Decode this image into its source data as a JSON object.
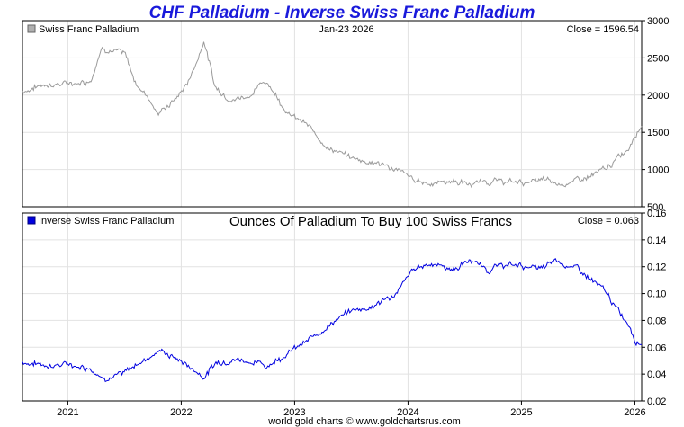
{
  "title": "CHF Palladium - Inverse Swiss Franc Palladium",
  "footer": "world gold charts © www.goldchartsrus.com",
  "colors": {
    "title": "#1a1adb",
    "top_series": "#9a9a9a",
    "bottom_series": "#0000e0"
  },
  "chart_data": [
    {
      "type": "line",
      "legend": "Swiss Franc Palladium",
      "date_label": "Jan-23  2026",
      "close_label": "Close = 1596.54",
      "ylim": [
        500,
        3000
      ],
      "yticks": [
        "500",
        "1000",
        "1500",
        "2000",
        "2500",
        "3000"
      ],
      "xlim": [
        2020.6,
        2026.06
      ],
      "grid": true,
      "series": [
        {
          "x": [
            2020.6,
            2020.8,
            2021.0,
            2021.2,
            2021.3,
            2021.42,
            2021.5,
            2021.6,
            2021.7,
            2021.8,
            2021.95,
            2022.05,
            2022.15,
            2022.2,
            2022.3,
            2022.45,
            2022.6,
            2022.75,
            2022.95,
            2023.1,
            2023.3,
            2023.5,
            2023.7,
            2023.9,
            2024.05,
            2024.2,
            2024.4,
            2024.55,
            2024.7,
            2024.85,
            2025.0,
            2025.2,
            2025.3,
            2025.5,
            2025.6,
            2025.75,
            2025.85,
            2025.95,
            2026.0,
            2026.06
          ],
          "y": [
            2050,
            2150,
            2150,
            2200,
            2650,
            2600,
            2550,
            2150,
            2000,
            1750,
            1950,
            2150,
            2500,
            2750,
            2100,
            1950,
            2000,
            2200,
            1750,
            1600,
            1300,
            1150,
            1100,
            1000,
            850,
            820,
            850,
            800,
            850,
            830,
            830,
            850,
            800,
            850,
            900,
            1000,
            1150,
            1300,
            1500,
            1600
          ]
        }
      ]
    },
    {
      "type": "line",
      "legend": "Inverse Swiss Franc Palladium",
      "title": "Ounces Of Palladium To Buy 100 Swiss Francs",
      "close_label": "Close = 0.063",
      "ylim": [
        0.02,
        0.16
      ],
      "yticks": [
        "0.02",
        "0.04",
        "0.06",
        "0.08",
        "0.10",
        "0.12",
        "0.14",
        "0.16"
      ],
      "xlim": [
        2020.6,
        2026.06
      ],
      "xticks": [
        "2021",
        "2022",
        "2023",
        "2024",
        "2025",
        "2026"
      ],
      "grid": true,
      "series": [
        {
          "x": [
            2020.6,
            2020.8,
            2021.0,
            2021.2,
            2021.3,
            2021.42,
            2021.5,
            2021.6,
            2021.7,
            2021.8,
            2021.95,
            2022.05,
            2022.15,
            2022.2,
            2022.3,
            2022.45,
            2022.6,
            2022.75,
            2022.95,
            2023.1,
            2023.3,
            2023.5,
            2023.7,
            2023.9,
            2024.05,
            2024.2,
            2024.4,
            2024.55,
            2024.7,
            2024.85,
            2025.0,
            2025.2,
            2025.3,
            2025.5,
            2025.6,
            2025.75,
            2025.85,
            2025.95,
            2026.0,
            2026.06
          ],
          "y": [
            0.049,
            0.047,
            0.047,
            0.045,
            0.038,
            0.039,
            0.04,
            0.047,
            0.052,
            0.058,
            0.052,
            0.047,
            0.041,
            0.038,
            0.048,
            0.052,
            0.05,
            0.046,
            0.057,
            0.063,
            0.077,
            0.087,
            0.091,
            0.1,
            0.118,
            0.123,
            0.118,
            0.125,
            0.118,
            0.121,
            0.121,
            0.118,
            0.125,
            0.118,
            0.111,
            0.1,
            0.087,
            0.077,
            0.067,
            0.063
          ]
        }
      ]
    }
  ]
}
